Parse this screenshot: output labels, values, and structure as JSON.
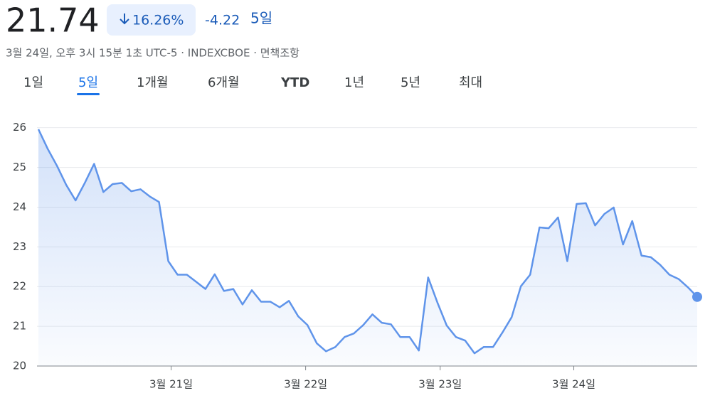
{
  "header": {
    "price": "21.74",
    "percent": "16.26%",
    "change": "-4.22",
    "period": "5일",
    "subtitle": "3월 24일, 오후 3시 15분 1초 UTC-5 · INDEXCBOE · 면책조항"
  },
  "tabs": [
    "1일",
    "5일",
    "1개월",
    "6개월",
    "YTD",
    "1년",
    "5년",
    "최대"
  ],
  "selected_tab": 1,
  "chart_data": {
    "type": "line",
    "x": [
      0,
      1,
      2,
      3,
      4,
      5,
      6,
      7,
      8,
      9,
      10,
      11,
      12,
      13,
      14,
      15,
      16,
      17,
      18,
      19,
      20,
      21,
      22,
      23,
      24,
      25,
      26,
      27,
      28,
      29,
      30,
      31,
      32,
      33,
      34,
      35,
      36,
      37,
      38,
      39,
      40,
      41,
      42,
      43,
      44,
      45,
      46,
      47,
      48,
      49,
      50,
      51,
      52,
      53,
      54,
      55,
      56,
      57,
      58,
      59,
      60,
      61,
      62,
      63,
      64,
      65,
      66,
      67,
      68,
      69,
      70,
      71
    ],
    "series": [
      {
        "color": "#5f94ea",
        "values": [
          25.96,
          25.47,
          25.04,
          24.56,
          24.17,
          24.61,
          25.09,
          24.38,
          24.58,
          24.61,
          24.4,
          24.45,
          24.27,
          24.13,
          22.64,
          22.3,
          22.3,
          22.12,
          21.94,
          22.31,
          21.89,
          21.94,
          21.55,
          21.91,
          21.62,
          21.62,
          21.48,
          21.64,
          21.25,
          21.03,
          20.57,
          20.37,
          20.48,
          20.73,
          20.82,
          21.03,
          21.3,
          21.09,
          21.05,
          20.73,
          20.73,
          20.39,
          22.23,
          21.6,
          21.02,
          20.73,
          20.64,
          20.32,
          20.48,
          20.48,
          20.84,
          21.23,
          22.01,
          22.3,
          23.49,
          23.47,
          23.74,
          22.64,
          24.08,
          24.1,
          23.54,
          23.83,
          23.99,
          23.06,
          23.65,
          22.78,
          22.74,
          22.55,
          22.3,
          22.19,
          21.98,
          21.74
        ]
      }
    ],
    "xlim": [
      0,
      71
    ],
    "xticks": [
      {
        "value": 14.3,
        "label": "3월 21일"
      },
      {
        "value": 28.8,
        "label": "3월 22일"
      },
      {
        "value": 43.3,
        "label": "3월 23일"
      },
      {
        "value": 57.7,
        "label": "3월 24일"
      }
    ],
    "ylim": [
      20,
      26.03
    ],
    "yticks": [
      20,
      21,
      22,
      23,
      24,
      25,
      26
    ],
    "grid": true
  }
}
